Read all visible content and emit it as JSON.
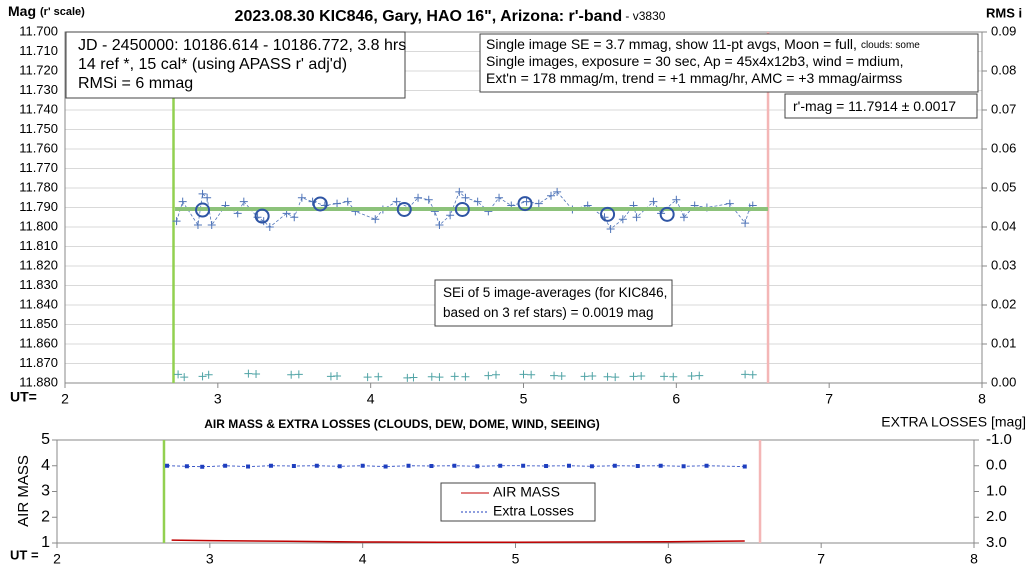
{
  "chart_data": [
    {
      "type": "scatter",
      "title": "2023.08.30 KIC846, Gary, HAO 16\", Arizona: r'-band",
      "title_note": " - v3830",
      "y_label": "Mag",
      "y_label_note": "(r' scale)",
      "y2_label": "RMS i",
      "x_label": "UT=",
      "xlim": [
        2,
        8
      ],
      "xticks": [
        2,
        3,
        4,
        5,
        6,
        7,
        8
      ],
      "ylim": [
        11.88,
        11.7
      ],
      "yticks": [
        {
          "value": 11.7,
          "label": "11.700"
        },
        {
          "value": 11.71,
          "label": "11.710"
        },
        {
          "value": 11.72,
          "label": "11.720"
        },
        {
          "value": 11.73,
          "label": "11.730"
        },
        {
          "value": 11.74,
          "label": "11.740"
        },
        {
          "value": 11.75,
          "label": "11.750"
        },
        {
          "value": 11.76,
          "label": "11.760"
        },
        {
          "value": 11.77,
          "label": "11.770"
        },
        {
          "value": 11.78,
          "label": "11.780"
        },
        {
          "value": 11.79,
          "label": "11.790"
        },
        {
          "value": 11.8,
          "label": "11.800"
        },
        {
          "value": 11.81,
          "label": "11.810"
        },
        {
          "value": 11.82,
          "label": "11.820"
        },
        {
          "value": 11.83,
          "label": "11.830"
        },
        {
          "value": 11.84,
          "label": "11.840"
        },
        {
          "value": 11.85,
          "label": "11.850"
        },
        {
          "value": 11.86,
          "label": "11.860"
        },
        {
          "value": 11.87,
          "label": "11.870"
        },
        {
          "value": 11.88,
          "label": "11.880"
        }
      ],
      "y2lim": [
        0,
        0.09
      ],
      "y2ticks": [
        {
          "value": 0,
          "label": "0.00"
        },
        0.01,
        0.02,
        0.03,
        0.04,
        0.05,
        0.06,
        0.07,
        0.08,
        0.09
      ],
      "grid": true,
      "vlines": [
        {
          "x": 2.71,
          "color": "#92d050"
        },
        {
          "x": 6.6,
          "color": "#f4b6b6"
        }
      ],
      "series": [
        {
          "marker": "plus",
          "connect": true,
          "color": "#4f74b8",
          "x": [
            2.73,
            2.77,
            2.87,
            2.9,
            2.93,
            2.96,
            3.05,
            3.13,
            3.17,
            3.26,
            3.3,
            3.34,
            3.45,
            3.5,
            3.55,
            3.62,
            3.7,
            3.78,
            3.85,
            3.9,
            4.03,
            4.08,
            4.17,
            4.25,
            4.31,
            4.38,
            4.42,
            4.45,
            4.52,
            4.58,
            4.62,
            4.7,
            4.77,
            4.84,
            4.92,
            5.02,
            5.1,
            5.18,
            5.22,
            5.32,
            5.42,
            5.53,
            5.57,
            5.65,
            5.72,
            5.74,
            5.85,
            5.9,
            6.0,
            6.05,
            6.12,
            6.2,
            6.35,
            6.45,
            6.48,
            6.5
          ],
          "values": [
            11.797,
            11.787,
            11.799,
            11.783,
            11.785,
            11.799,
            11.789,
            11.793,
            11.787,
            11.795,
            11.797,
            11.8,
            11.793,
            11.795,
            11.785,
            11.787,
            11.789,
            11.788,
            11.787,
            11.792,
            11.796,
            11.791,
            11.787,
            11.79,
            11.785,
            11.786,
            11.792,
            11.799,
            11.794,
            11.782,
            11.785,
            11.787,
            11.792,
            11.785,
            11.789,
            11.787,
            11.788,
            11.784,
            11.782,
            11.791,
            11.789,
            11.795,
            11.801,
            11.796,
            11.789,
            11.795,
            11.787,
            11.793,
            11.786,
            11.795,
            11.789,
            11.79,
            11.788,
            11.798,
            11.79,
            11.789
          ]
        },
        {
          "marker": "line",
          "color": "#8cc27a",
          "x": [
            2.72,
            6.6
          ],
          "values": [
            11.7908,
            11.7908
          ]
        },
        {
          "marker": "circle",
          "color": "#2f55a4",
          "x": [
            2.9,
            3.29,
            3.67,
            4.22,
            4.6,
            5.01,
            5.55,
            5.94
          ],
          "values": [
            11.7913,
            11.7944,
            11.7882,
            11.791,
            11.791,
            11.788,
            11.7935,
            11.7935
          ]
        },
        {
          "marker": "plus",
          "axis": "y2",
          "color": "#4fa3a5",
          "x": [
            2.74,
            2.78,
            2.9,
            2.94,
            3.2,
            3.25,
            3.48,
            3.53,
            3.74,
            3.78,
            3.98,
            4.05,
            4.24,
            4.28,
            4.4,
            4.45,
            4.55,
            4.62,
            4.77,
            4.82,
            5.0,
            5.05,
            5.2,
            5.25,
            5.4,
            5.45,
            5.55,
            5.6,
            5.72,
            5.77,
            5.92,
            5.98,
            6.1,
            6.15,
            6.45,
            6.5
          ],
          "values": [
            0.0022,
            0.0015,
            0.0017,
            0.0021,
            0.0024,
            0.0023,
            0.0021,
            0.0022,
            0.0017,
            0.0018,
            0.0015,
            0.0016,
            0.0013,
            0.0014,
            0.0016,
            0.0015,
            0.0017,
            0.0016,
            0.0019,
            0.0021,
            0.0022,
            0.0021,
            0.0019,
            0.0018,
            0.0017,
            0.0018,
            0.0016,
            0.0015,
            0.0017,
            0.0018,
            0.0017,
            0.0016,
            0.0018,
            0.0019,
            0.0022,
            0.0021
          ]
        }
      ],
      "annotations": [
        {
          "lines": [
            "JD - 2450000: 10186.614 - 10186.772, 3.8 hrs",
            "14 ref *, 15 cal* (using APASS r' adj'd)",
            "RMSi = 6 mmag"
          ]
        },
        {
          "lines": [
            "Single image SE = 3.7 mmag, show  11-pt avgs, Moon = full,",
            "Single images, exposure = 30 sec, Ap = 45x4x12b3, wind = mdium,",
            "Ext'n = 178 mmag/m, trend = +1  mmag/hr, AMC = +3 mmag/airmss"
          ],
          "note": "clouds: some"
        },
        {
          "lines": [
            "r'-mag = 11.7914 ± 0.0017"
          ]
        },
        {
          "lines": [
            "SEi of 5 image-averages (for KIC846,",
            "based on 3 ref stars) = 0.0019 mag"
          ]
        }
      ]
    },
    {
      "type": "line",
      "title": "AIR MASS & EXTRA LOSSES (CLOUDS, DEW, DOME, WIND, SEEING)",
      "y_label": "AIR MASS",
      "y2_label": "EXTRA LOSSES [mag]",
      "x_label": "UT =",
      "xlim": [
        2,
        8
      ],
      "xticks": [
        2,
        3,
        4,
        5,
        6,
        7,
        8
      ],
      "ylim": [
        1,
        5
      ],
      "yticks": [
        1,
        2,
        3,
        4,
        5
      ],
      "y2lim": [
        3,
        -1
      ],
      "y2ticks": [
        {
          "value": -1,
          "label": "-1.0"
        },
        {
          "value": 0,
          "label": "0.0"
        },
        {
          "value": 1,
          "label": "1.0"
        },
        {
          "value": 2,
          "label": "2.0"
        },
        {
          "value": 3,
          "label": "3.0"
        }
      ],
      "legend": "center",
      "vlines": [
        {
          "x": 2.7,
          "color": "#92d050"
        },
        {
          "x": 6.6,
          "color": "#f4b6b6"
        }
      ],
      "series": [
        {
          "name": "AIR MASS",
          "color": "#c00000",
          "marker": "line",
          "x": [
            2.75,
            3.0,
            3.5,
            4.0,
            4.5,
            5.0,
            5.5,
            6.0,
            6.5
          ],
          "values": [
            1.11,
            1.09,
            1.07,
            1.04,
            1.03,
            1.03,
            1.04,
            1.05,
            1.08
          ]
        },
        {
          "name": "Extra Losses",
          "color": "#1f3fbf",
          "marker": "dot",
          "connect": true,
          "axis": "y2",
          "x": [
            2.72,
            2.85,
            2.95,
            3.1,
            3.25,
            3.4,
            3.55,
            3.7,
            3.85,
            4.0,
            4.15,
            4.3,
            4.45,
            4.6,
            4.75,
            4.9,
            5.05,
            5.2,
            5.35,
            5.5,
            5.65,
            5.8,
            5.95,
            6.1,
            6.25,
            6.5
          ],
          "values": [
            0.0,
            0.02,
            0.04,
            0.0,
            0.03,
            0.0,
            0.01,
            0.0,
            0.02,
            0.0,
            0.03,
            0.0,
            0.01,
            0.0,
            0.02,
            0.0,
            0.0,
            0.01,
            0.0,
            0.02,
            0.0,
            0.01,
            0.0,
            0.02,
            0.0,
            0.03
          ]
        }
      ]
    }
  ]
}
